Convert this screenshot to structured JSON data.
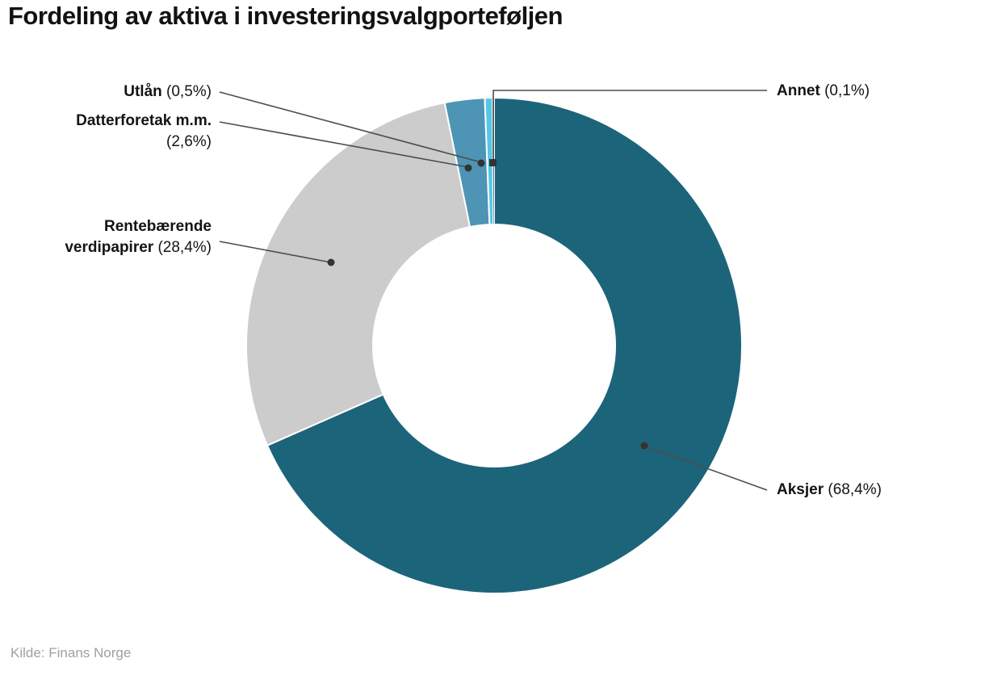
{
  "title": "Fordeling av aktiva i investeringsvalgporteføljen",
  "source": "Kilde: Finans Norge",
  "chart_data": {
    "type": "pie",
    "subtype": "donut",
    "title": "Fordeling av aktiva i investeringsvalgporteføljen",
    "unit": "%",
    "start_angle_deg": 0,
    "direction": "clockwise",
    "inner_radius_ratio": 0.49,
    "legend_position": "callout-labels",
    "segments": [
      {
        "label": "Aksjer",
        "value": 68.4,
        "pct_text": "(68,4%)",
        "color": "#1c647a"
      },
      {
        "label": "Rentebærende verdipapirer",
        "value": 28.4,
        "pct_text": "(28,4%)",
        "color": "#cccccc"
      },
      {
        "label": "Datterforetak m.m.",
        "value": 2.6,
        "pct_text": "(2,6%)",
        "color": "#4d94b5"
      },
      {
        "label": "Utlån",
        "value": 0.5,
        "pct_text": "(0,5%)",
        "color": "#55c6e6"
      },
      {
        "label": "Annet",
        "value": 0.1,
        "pct_text": "(0,1%)",
        "color": "#123e52"
      }
    ]
  }
}
